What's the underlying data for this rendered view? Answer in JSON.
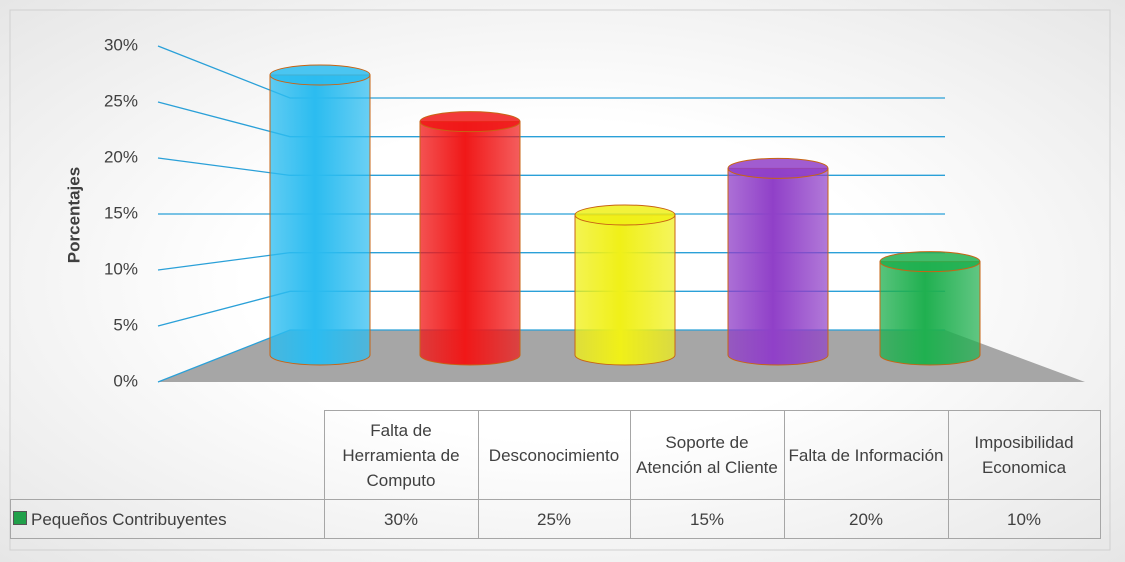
{
  "chart_data": {
    "type": "bar",
    "y_label": "Porcentajes",
    "categories": [
      "Falta de Herramienta de Computo",
      "Desconocimiento",
      "Soporte de Atención al Cliente",
      "Falta de Información",
      "Imposibilidad Economica"
    ],
    "series": [
      {
        "name": "Pequeños Contribuyentes",
        "color": "#21a04a",
        "colors": [
          "#2bbcf0",
          "#f01818",
          "#f0f018",
          "#9040c8",
          "#20b050"
        ],
        "values": [
          30,
          25,
          15,
          20,
          10
        ],
        "value_labels": [
          "30%",
          "25%",
          "15%",
          "20%",
          "10%"
        ]
      }
    ],
    "ylim": [
      0,
      30
    ],
    "yticks": [
      {
        "value": 0,
        "label": "0%"
      },
      {
        "value": 5,
        "label": "5%"
      },
      {
        "value": 10,
        "label": "10%"
      },
      {
        "value": 15,
        "label": "15%"
      },
      {
        "value": 20,
        "label": "20%"
      },
      {
        "value": 25,
        "label": "25%"
      },
      {
        "value": 30,
        "label": "30%"
      }
    ],
    "grid": true
  }
}
